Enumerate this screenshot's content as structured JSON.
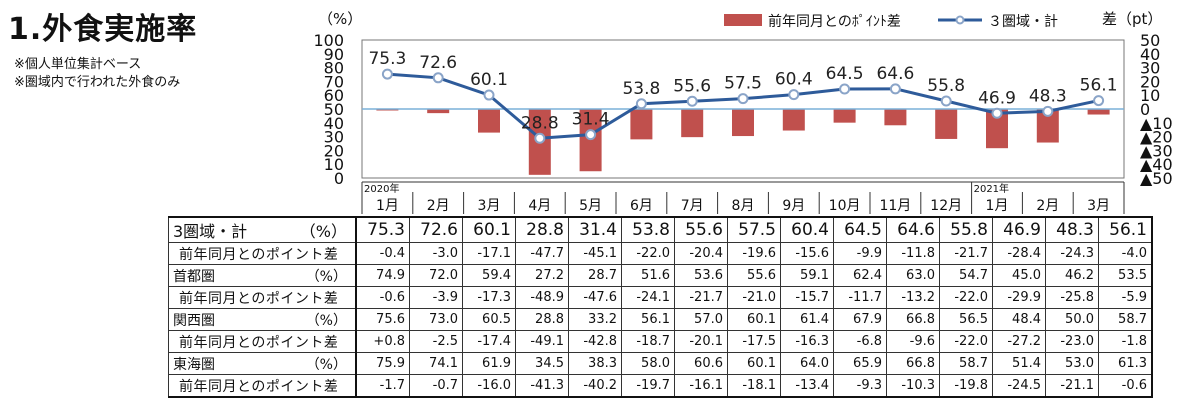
{
  "title": "1.外食実施率",
  "notes": [
    "※個人単位集計ベース",
    "※圏域内で行われた外食のみ"
  ],
  "chart_data": {
    "type": "bar+line",
    "left_axis_unit": "（%）",
    "right_axis_unit": "差（pt）",
    "left_ylim": [
      0,
      100
    ],
    "left_ticks": [
      "0",
      "10",
      "20",
      "30",
      "40",
      "50",
      "60",
      "70",
      "80",
      "90",
      "100"
    ],
    "right_ylim": [
      -50,
      50
    ],
    "right_ticks": [
      "50",
      "40",
      "30",
      "20",
      "10",
      "0",
      "▲10",
      "▲20",
      "▲30",
      "▲40",
      "▲50"
    ],
    "year_labels": [
      {
        "index": 0,
        "text": "2020年"
      },
      {
        "index": 12,
        "text": "2021年"
      }
    ],
    "categories": [
      "1月",
      "2月",
      "3月",
      "4月",
      "5月",
      "6月",
      "7月",
      "8月",
      "9月",
      "10月",
      "11月",
      "12月",
      "1月",
      "2月",
      "3月"
    ],
    "series": [
      {
        "name": "前年同月とのﾎﾟｲﾝﾄ差",
        "kind": "bar",
        "axis": "right",
        "color": "#c0504d",
        "values": [
          -0.4,
          -3.0,
          -17.1,
          -47.7,
          -45.1,
          -22.0,
          -20.4,
          -19.6,
          -15.6,
          -9.9,
          -11.8,
          -21.7,
          -28.4,
          -24.3,
          -4.0
        ]
      },
      {
        "name": "３圏域・計",
        "kind": "line",
        "axis": "left",
        "color": "#2e5b9a",
        "values": [
          75.3,
          72.6,
          60.1,
          28.8,
          31.4,
          53.8,
          55.6,
          57.5,
          60.4,
          64.5,
          64.6,
          55.8,
          46.9,
          48.3,
          56.1
        ]
      }
    ]
  },
  "table": {
    "rows": [
      {
        "kind": "main",
        "label": "3圏域・計",
        "unit": "（%）",
        "values": [
          "75.3",
          "72.6",
          "60.1",
          "28.8",
          "31.4",
          "53.8",
          "55.6",
          "57.5",
          "60.4",
          "64.5",
          "64.6",
          "55.8",
          "46.9",
          "48.3",
          "56.1"
        ]
      },
      {
        "kind": "diff",
        "label": "前年同月とのポイント差",
        "values": [
          "-0.4",
          "-3.0",
          "-17.1",
          "-47.7",
          "-45.1",
          "-22.0",
          "-20.4",
          "-19.6",
          "-15.6",
          "-9.9",
          "-11.8",
          "-21.7",
          "-28.4",
          "-24.3",
          "-4.0"
        ]
      },
      {
        "kind": "sub",
        "label": "首都圏",
        "unit": "（%）",
        "values": [
          "74.9",
          "72.0",
          "59.4",
          "27.2",
          "28.7",
          "51.6",
          "53.6",
          "55.6",
          "59.1",
          "62.4",
          "63.0",
          "54.7",
          "45.0",
          "46.2",
          "53.5"
        ]
      },
      {
        "kind": "diff",
        "label": "前年同月とのポイント差",
        "values": [
          "-0.6",
          "-3.9",
          "-17.3",
          "-48.9",
          "-47.6",
          "-24.1",
          "-21.7",
          "-21.0",
          "-15.7",
          "-11.7",
          "-13.2",
          "-22.0",
          "-29.9",
          "-25.8",
          "-5.9"
        ]
      },
      {
        "kind": "sub",
        "label": "関西圏",
        "unit": "（%）",
        "values": [
          "75.6",
          "73.0",
          "60.5",
          "28.8",
          "33.2",
          "56.1",
          "57.0",
          "60.1",
          "61.4",
          "67.9",
          "66.8",
          "56.5",
          "48.4",
          "50.0",
          "58.7"
        ]
      },
      {
        "kind": "diff",
        "label": "前年同月とのポイント差",
        "values": [
          "+0.8",
          "-2.5",
          "-17.4",
          "-49.1",
          "-42.8",
          "-18.7",
          "-20.1",
          "-17.5",
          "-16.3",
          "-6.8",
          "-9.6",
          "-22.0",
          "-27.2",
          "-23.0",
          "-1.8"
        ]
      },
      {
        "kind": "sub",
        "label": "東海圏",
        "unit": "（%）",
        "values": [
          "75.9",
          "74.1",
          "61.9",
          "34.5",
          "38.3",
          "58.0",
          "60.6",
          "60.1",
          "64.0",
          "65.9",
          "66.8",
          "58.7",
          "51.4",
          "53.0",
          "61.3"
        ]
      },
      {
        "kind": "diff",
        "label": "前年同月とのポイント差",
        "values": [
          "-1.7",
          "-0.7",
          "-16.0",
          "-41.3",
          "-40.2",
          "-19.7",
          "-16.1",
          "-18.1",
          "-13.4",
          "-9.3",
          "-10.3",
          "-19.8",
          "-24.5",
          "-21.1",
          "-0.6"
        ]
      }
    ]
  }
}
